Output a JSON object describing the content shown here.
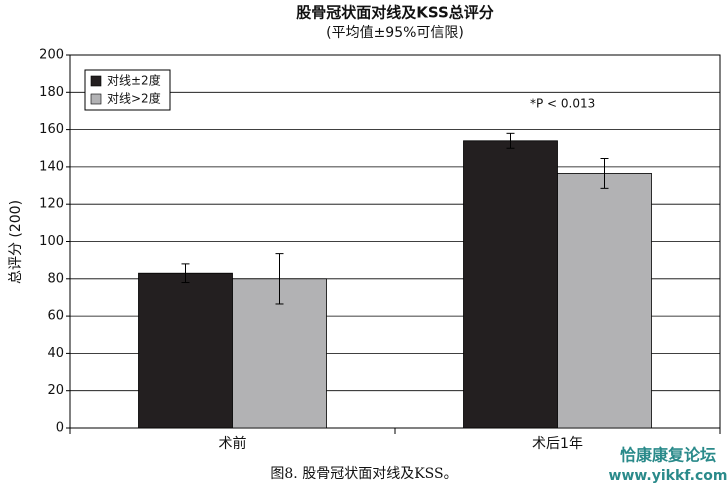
{
  "chart_data": {
    "type": "bar",
    "title": "股骨冠状面对线及KSS总评分",
    "subtitle": "(平均值±95%可信限)",
    "y_label": "总评分 (200)",
    "categories": [
      "术前",
      "术后1年"
    ],
    "series": [
      {
        "name": "对线±2度",
        "color": "#231f20",
        "values": [
          83,
          154
        ],
        "errors": [
          5,
          4
        ]
      },
      {
        "name": "对线>2度",
        "color": "#b2b2b4",
        "values": [
          80,
          136.5
        ],
        "errors": [
          13.5,
          8
        ]
      }
    ],
    "ylim": [
      0,
      200
    ],
    "yticks": [
      0,
      20,
      40,
      60,
      80,
      100,
      120,
      140,
      160,
      180,
      200
    ],
    "grid": true,
    "legend": "top-left",
    "annotation": "*P < 0.013",
    "caption": "图8. 股骨冠状面对线及KSS。",
    "watermark": [
      "恰康康复论坛",
      "www.yikkf.com"
    ]
  }
}
